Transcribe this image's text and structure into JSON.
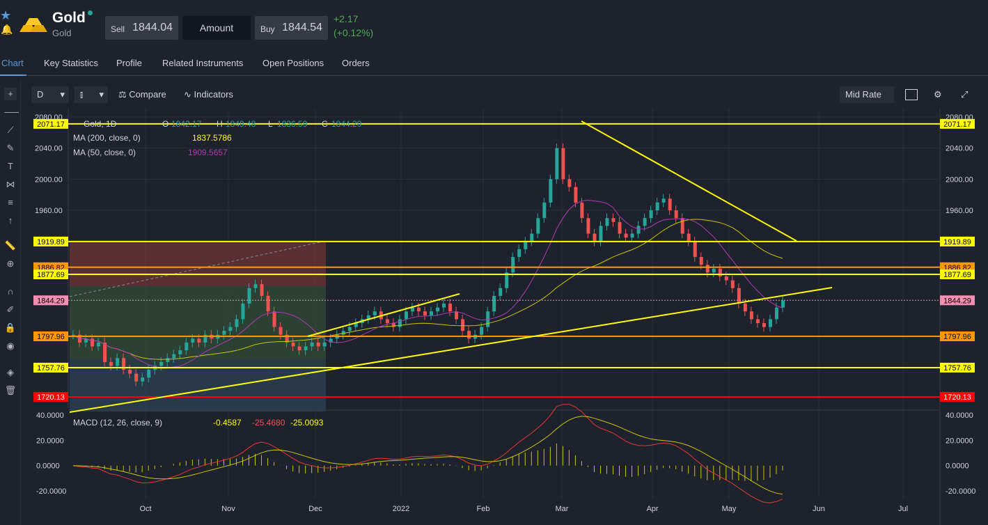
{
  "header": {
    "title": "Gold",
    "subtitle": "Gold",
    "sell_label": "Sell",
    "sell_value": "1844.04",
    "amount_label": "Amount",
    "buy_label": "Buy",
    "buy_value": "1844.54",
    "change": "+2.17",
    "change_pct": "(+0.12%)",
    "colors": {
      "up": "#4caf50",
      "accent": "#5b9bd5"
    }
  },
  "tabs": [
    {
      "label": "Chart",
      "active": true
    },
    {
      "label": "Key Statistics"
    },
    {
      "label": "Profile"
    },
    {
      "label": "Related Instruments"
    },
    {
      "label": "Open Positions"
    },
    {
      "label": "Orders"
    }
  ],
  "toolbar": {
    "interval": "D",
    "compare": "Compare",
    "indicators": "Indicators",
    "rate": "Mid Rate"
  },
  "legend": {
    "symbol": "Gold, 1D",
    "o_label": "O",
    "o_val": "1842.17",
    "h_label": "H",
    "h_val": "1849.48",
    "l_label": "L",
    "l_val": "1836.59",
    "c_label": "C",
    "c_val": "1844.29",
    "ma200_label": "MA (200, close, 0)",
    "ma200_val": "1837.5786",
    "ma50_label": "MA (50, close, 0)",
    "ma50_val": "1909.5657",
    "macd_label": "MACD (12, 26, close, 9)",
    "macd_v1": "-0.4587",
    "macd_v2": "-25.4680",
    "macd_v3": "-25.0093"
  },
  "chart_data": {
    "type": "line",
    "price_axis_ticks": [
      "2080.00",
      "2040.00",
      "2000.00",
      "1960.00"
    ],
    "price_levels": [
      {
        "label": "2071.17",
        "value": 2071.17,
        "color": "#ffff00"
      },
      {
        "label": "1919.89",
        "value": 1919.89,
        "color": "#ffff00"
      },
      {
        "label": "1886.82",
        "value": 1886.82,
        "color": "#ff9800"
      },
      {
        "label": "1877.69",
        "value": 1877.69,
        "color": "#ffff00"
      },
      {
        "label": "1844.29",
        "value": 1844.29,
        "color": "#f48fb1"
      },
      {
        "label": "1797.96",
        "value": 1797.96,
        "color": "#ff9800"
      },
      {
        "label": "1757.76",
        "value": 1757.76,
        "color": "#ffff00"
      },
      {
        "label": "1720.13",
        "value": 1720.13,
        "color": "#ff0000"
      }
    ],
    "x_ticks": [
      "Oct",
      "Nov",
      "Dec",
      "2022",
      "Feb",
      "Mar",
      "Apr",
      "May",
      "Jun",
      "Jul"
    ],
    "macd_ticks": [
      "40.0000",
      "20.0000",
      "0.0000",
      "-20.0000"
    ],
    "series": [
      {
        "values": [
          1800,
          1790,
          1795,
          1785,
          1790,
          1765,
          1760,
          1770,
          1755,
          1750,
          1740,
          1745,
          1755,
          1760,
          1765,
          1770,
          1775,
          1780,
          1790,
          1795,
          1790,
          1800,
          1795,
          1800,
          1805,
          1810,
          1820,
          1840,
          1860,
          1865,
          1850,
          1830,
          1810,
          1800,
          1790,
          1785,
          1780,
          1785,
          1790,
          1785,
          1790,
          1795,
          1800,
          1805,
          1810,
          1815,
          1820,
          1825,
          1830,
          1820,
          1815,
          1810,
          1820,
          1830,
          1835,
          1830,
          1825,
          1830,
          1835,
          1840,
          1830,
          1820,
          1805,
          1795,
          1800,
          1810,
          1830,
          1850,
          1860,
          1880,
          1900,
          1910,
          1920,
          1930,
          1950,
          1970,
          2000,
          2040,
          2000,
          1990,
          1970,
          1950,
          1930,
          1920,
          1940,
          1950,
          1945,
          1930,
          1925,
          1930,
          1940,
          1950,
          1960,
          1970,
          1975,
          1960,
          1950,
          1930,
          1920,
          1900,
          1890,
          1880,
          1885,
          1875,
          1870,
          1860,
          1840,
          1830,
          1820,
          1815,
          1810,
          1820,
          1835,
          1844
        ]
      }
    ]
  }
}
